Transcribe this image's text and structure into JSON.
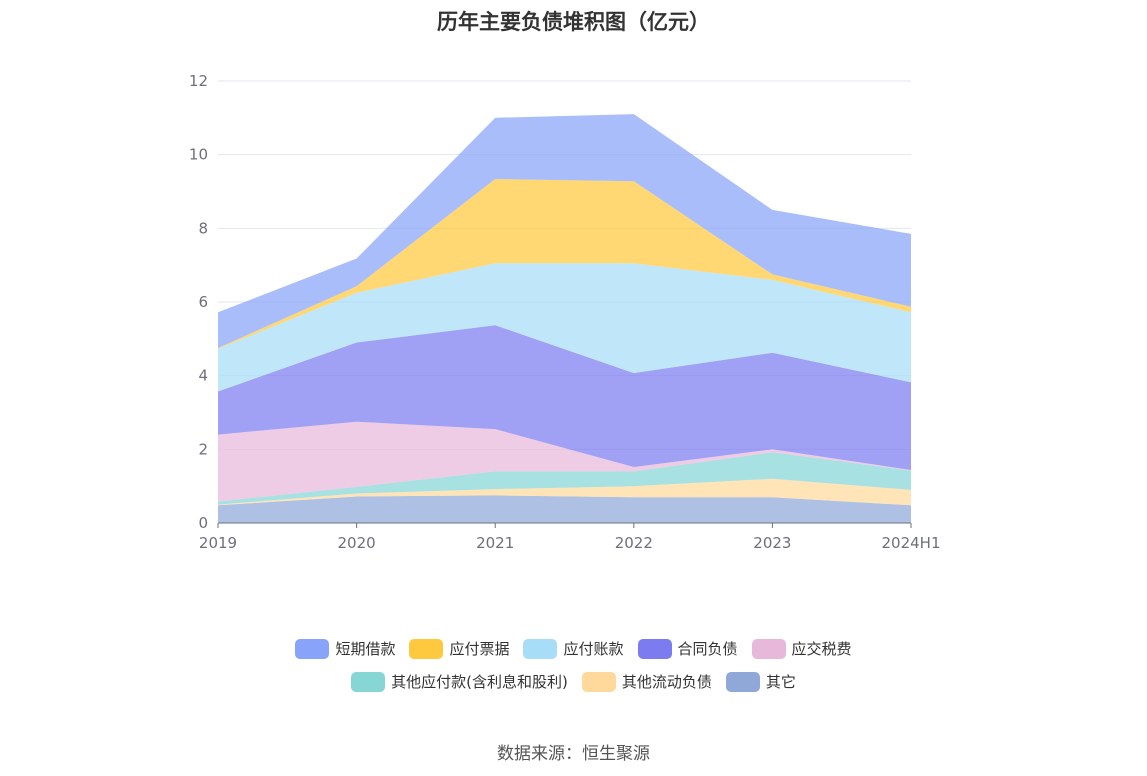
{
  "title": "历年主要负债堆积图（亿元）",
  "source": "数据来源：恒生聚源",
  "chart_data": {
    "type": "area",
    "stacked": true,
    "title": "历年主要负债堆积图（亿元）",
    "categories": [
      "2019",
      "2020",
      "2021",
      "2022",
      "2023",
      "2024H1"
    ],
    "ylim": [
      0,
      12
    ],
    "yticks": [
      0,
      2,
      4,
      6,
      8,
      10,
      12
    ],
    "grid": true,
    "legend_position": "bottom",
    "series": [
      {
        "name": "其它",
        "color": "#8fa8d8",
        "values": [
          0.48,
          0.72,
          0.75,
          0.7,
          0.7,
          0.48
        ]
      },
      {
        "name": "其他流动负债",
        "color": "#ffd99b",
        "values": [
          0.02,
          0.08,
          0.17,
          0.3,
          0.5,
          0.42
        ]
      },
      {
        "name": "其他应付款(含利息和股利)",
        "color": "#86d6d6",
        "values": [
          0.08,
          0.18,
          0.48,
          0.4,
          0.72,
          0.52
        ]
      },
      {
        "name": "应交税费",
        "color": "#e8b8db",
        "values": [
          1.82,
          1.77,
          1.15,
          0.12,
          0.08,
          0.02
        ]
      },
      {
        "name": "合同负债",
        "color": "#7c7cf0",
        "values": [
          1.17,
          2.15,
          2.82,
          2.55,
          2.62,
          2.38
        ]
      },
      {
        "name": "应付账款",
        "color": "#a8ddf7",
        "values": [
          1.16,
          1.35,
          1.68,
          2.98,
          1.98,
          1.9
        ]
      },
      {
        "name": "应付票据",
        "color": "#ffc93f",
        "values": [
          0.02,
          0.18,
          2.29,
          2.23,
          0.15,
          0.15
        ]
      },
      {
        "name": "短期借款",
        "color": "#88a4fa",
        "values": [
          0.97,
          0.75,
          1.66,
          1.82,
          1.75,
          1.98
        ]
      }
    ]
  },
  "legend_rows": [
    [
      "短期借款",
      "应付票据",
      "应付账款",
      "合同负债",
      "应交税费"
    ],
    [
      "其他应付款(含利息和股利)",
      "其他流动负债",
      "其它"
    ]
  ]
}
